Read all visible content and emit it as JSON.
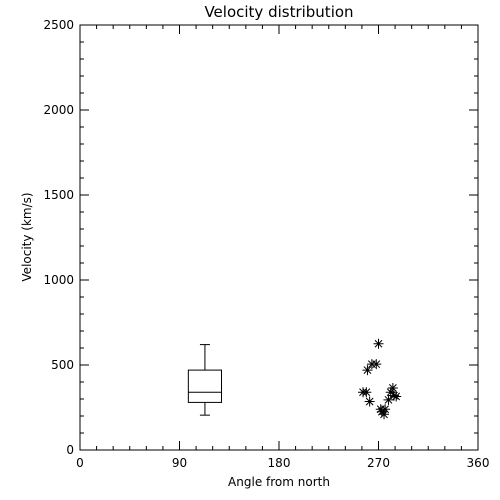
{
  "chart_data": {
    "type": "scatter",
    "title": "Velocity distribution",
    "xlabel": "Angle from north",
    "ylabel": "Velocity (km/s)",
    "xlim": [
      0,
      360
    ],
    "ylim": [
      0,
      2500
    ],
    "x_ticks": [
      0,
      90,
      180,
      270,
      360
    ],
    "y_ticks": [
      0,
      500,
      1000,
      1500,
      2000,
      2500
    ],
    "x_minor_step": 15,
    "y_minor_step": 100,
    "grid": false,
    "marker": "asterisk",
    "points": [
      {
        "x": 256,
        "y": 340
      },
      {
        "x": 259,
        "y": 340
      },
      {
        "x": 260,
        "y": 470
      },
      {
        "x": 262,
        "y": 285
      },
      {
        "x": 264,
        "y": 505
      },
      {
        "x": 268,
        "y": 505
      },
      {
        "x": 270,
        "y": 625
      },
      {
        "x": 272,
        "y": 240
      },
      {
        "x": 273,
        "y": 225
      },
      {
        "x": 275,
        "y": 210
      },
      {
        "x": 276,
        "y": 240
      },
      {
        "x": 279,
        "y": 295
      },
      {
        "x": 281,
        "y": 340
      },
      {
        "x": 283,
        "y": 365
      },
      {
        "x": 284,
        "y": 320
      },
      {
        "x": 286,
        "y": 315
      }
    ],
    "boxplot": {
      "x": 113,
      "width": 30,
      "whisker_low": 205,
      "q1": 280,
      "median": 340,
      "q3": 470,
      "whisker_high": 620
    }
  }
}
